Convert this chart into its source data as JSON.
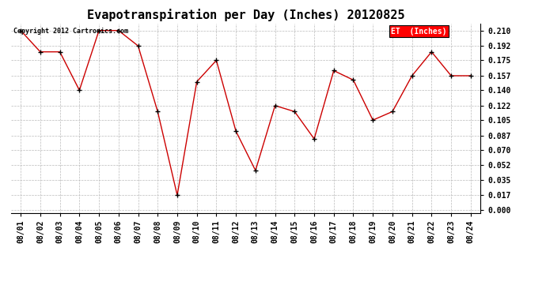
{
  "title": "Evapotranspiration per Day (Inches) 20120825",
  "copyright_text": "Copyright 2012 Cartronics.com",
  "legend_label": "ET  (Inches)",
  "legend_bg": "#ff0000",
  "legend_text_color": "#ffffff",
  "x_labels": [
    "08/01",
    "08/02",
    "08/03",
    "08/04",
    "08/05",
    "08/06",
    "08/07",
    "08/08",
    "08/09",
    "08/10",
    "08/11",
    "08/12",
    "08/13",
    "08/14",
    "08/15",
    "08/16",
    "08/17",
    "08/18",
    "08/19",
    "08/20",
    "08/21",
    "08/22",
    "08/23",
    "08/24"
  ],
  "y_values": [
    0.21,
    0.185,
    0.185,
    0.14,
    0.21,
    0.21,
    0.192,
    0.115,
    0.017,
    0.15,
    0.175,
    0.092,
    0.046,
    0.122,
    0.115,
    0.083,
    0.163,
    0.152,
    0.105,
    0.115,
    0.157,
    0.185,
    0.157,
    0.157
  ],
  "y_ticks": [
    0.0,
    0.017,
    0.035,
    0.052,
    0.07,
    0.087,
    0.105,
    0.122,
    0.14,
    0.157,
    0.175,
    0.192,
    0.21
  ],
  "line_color": "#cc0000",
  "marker_color": "#000000",
  "bg_color": "#ffffff",
  "grid_color": "#bbbbbb",
  "title_fontsize": 11,
  "tick_fontsize": 7,
  "copyright_fontsize": 6
}
